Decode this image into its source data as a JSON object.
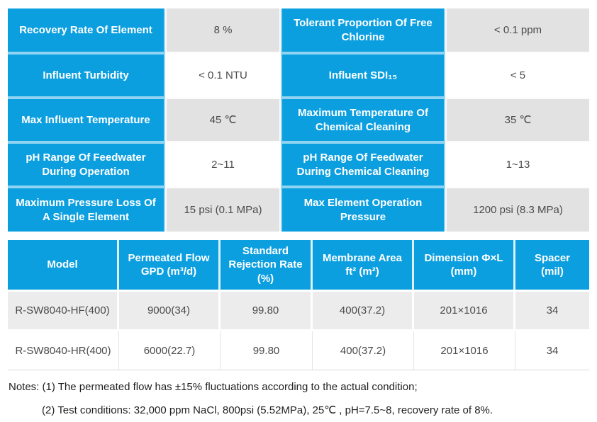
{
  "colors": {
    "accent_blue": "#0C9FE0",
    "model_link_blue": "#38A6DE",
    "shaded_value_gray": "#E2E2E2",
    "shaded_row_gray": "#ECECEC"
  },
  "spec_table": {
    "rows": [
      {
        "label1": "Recovery Rate Of Element",
        "value1": "8 %",
        "label2": "Tolerant Proportion Of Free Chlorine",
        "value2": "< 0.1 ppm"
      },
      {
        "label1": "Influent Turbidity",
        "value1": "< 0.1 NTU",
        "label2": "Influent SDI₁₅",
        "value2": "< 5"
      },
      {
        "label1": "Max Influent Temperature",
        "value1": "45 ℃",
        "label2": "Maximum Temperature Of Chemical Cleaning",
        "value2": "35 ℃"
      },
      {
        "label1": "pH Range Of Feedwater During Operation",
        "value1": "2~11",
        "label2": "pH Range Of Feedwater During Chemical Cleaning",
        "value2": "1~13"
      },
      {
        "label1": "Maximum Pressure Loss Of A Single Element",
        "value1": "15 psi (0.1 MPa)",
        "label2": "Max Element Operation Pressure",
        "value2": "1200 psi (8.3 MPa)"
      }
    ]
  },
  "model_table": {
    "headers": [
      "Model",
      "Permeated Flow\nGPD (m³/d)",
      "Standard\nRejection Rate\n(%)",
      "Membrane Area\nft² (m²)",
      "Dimension Φ×L\n(mm)",
      "Spacer\n(mil)"
    ],
    "rows": [
      [
        "R-SW8040-HF(400)",
        "9000(34)",
        "99.80",
        "400(37.2)",
        "201×1016",
        "34"
      ],
      [
        "R-SW8040-HR(400)",
        "6000(22.7)",
        "99.80",
        "400(37.2)",
        "201×1016",
        "34"
      ]
    ]
  },
  "notes": {
    "line1": "Notes: (1) The permeated flow has ±15% fluctuations according to the actual condition;",
    "line2": "(2) Test conditions: 32,000 ppm NaCl, 800psi (5.52MPa), 25℃ , pH=7.5~8, recovery rate of 8%."
  }
}
